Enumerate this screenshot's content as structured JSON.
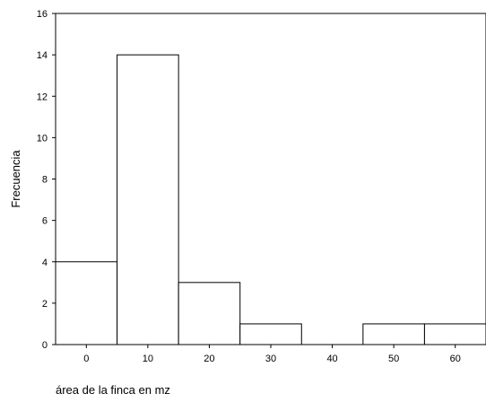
{
  "chart_data": {
    "type": "bar",
    "title": "",
    "xlabel": "área de la finca en mz",
    "ylabel": "Frecuencia",
    "bin_width": 10,
    "bins": [
      {
        "center": 0,
        "value": 4
      },
      {
        "center": 10,
        "value": 14
      },
      {
        "center": 20,
        "value": 3
      },
      {
        "center": 30,
        "value": 1
      },
      {
        "center": 40,
        "value": 0
      },
      {
        "center": 50,
        "value": 1
      },
      {
        "center": 60,
        "value": 1
      }
    ],
    "x_ticks": [
      "0",
      "10",
      "20",
      "30",
      "40",
      "50",
      "60"
    ],
    "y_ticks": [
      "0",
      "2",
      "4",
      "6",
      "8",
      "10",
      "12",
      "14",
      "16"
    ],
    "ylim": [
      0,
      16
    ],
    "xlim": [
      -5,
      65
    ],
    "grid": false,
    "colors": {
      "bar_fill": "#ffffff",
      "bar_stroke": "#000000"
    }
  }
}
